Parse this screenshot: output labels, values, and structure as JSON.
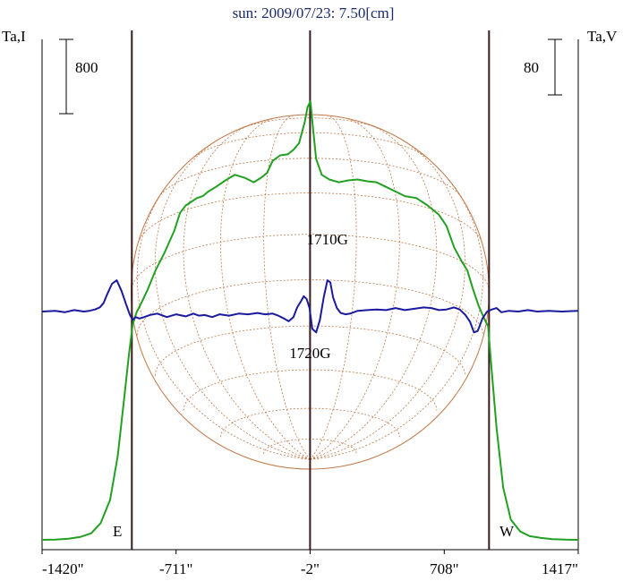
{
  "chart_data": {
    "type": "line",
    "title": "sun: 2009/07/23: 7.50[cm]",
    "left_axis_label": "Ta,I",
    "right_axis_label": "Ta,V",
    "left_scale_label": "800",
    "right_scale_label": "80",
    "left_scale_value": 800,
    "right_scale_value": 80,
    "x_ticks": [
      {
        "value": -1420,
        "label": "-1420\""
      },
      {
        "value": -711,
        "label": "-711\""
      },
      {
        "value": -2,
        "label": "-2\""
      },
      {
        "value": 708,
        "label": "708\""
      },
      {
        "value": 1417,
        "label": "1417\""
      }
    ],
    "xlim": [
      -1420,
      1417
    ],
    "limb_labels": {
      "east": "E",
      "west": "W"
    },
    "limb_positions": [
      -945,
      945
    ],
    "center_position": -2,
    "annotations": [
      {
        "text": "1710G",
        "x": 90,
        "I_value": 1690,
        "side": "above"
      },
      {
        "text": "1720G",
        "x": -2,
        "I_value": 1450,
        "side": "below"
      }
    ],
    "colors": {
      "intensity": "#22a022",
      "polarization": "#1a1aa0",
      "grid": "#c07848",
      "limb_lines": "#3a1a1a",
      "title": "#1a2a6a",
      "text": "#000000"
    },
    "series": [
      {
        "axis": "left",
        "color": "#22a022",
        "x": [
          -1420,
          -1350,
          -1280,
          -1220,
          -1160,
          -1110,
          -1060,
          -1020,
          -985,
          -960,
          -940,
          -920,
          -890,
          -860,
          -820,
          -770,
          -720,
          -690,
          -660,
          -630,
          -600,
          -570,
          -540,
          -500,
          -450,
          -400,
          -350,
          -300,
          -260,
          -230,
          -200,
          -160,
          -120,
          -90,
          -60,
          -30,
          -15,
          0,
          15,
          30,
          60,
          100,
          150,
          200,
          250,
          300,
          350,
          400,
          450,
          500,
          560,
          620,
          680,
          720,
          760,
          800,
          830,
          860,
          890,
          920,
          940,
          960,
          985,
          1020,
          1060,
          1110,
          1160,
          1220,
          1280,
          1350,
          1417
        ],
        "y": [
          0,
          3,
          12,
          30,
          70,
          180,
          430,
          900,
          1530,
          2000,
          2320,
          2450,
          2570,
          2700,
          2900,
          3100,
          3330,
          3520,
          3600,
          3640,
          3680,
          3700,
          3750,
          3800,
          3870,
          3930,
          3900,
          3850,
          3900,
          3950,
          4080,
          4140,
          4150,
          4200,
          4270,
          4500,
          4660,
          4720,
          4400,
          4100,
          3930,
          3880,
          3850,
          3870,
          3880,
          3860,
          3850,
          3800,
          3750,
          3700,
          3680,
          3600,
          3500,
          3380,
          3150,
          3000,
          2900,
          2700,
          2520,
          2380,
          2300,
          1800,
          1200,
          560,
          220,
          90,
          40,
          20,
          8,
          2,
          0
        ]
      },
      {
        "axis": "right",
        "color": "#1a1aa0",
        "x": [
          -1420,
          -1350,
          -1300,
          -1250,
          -1200,
          -1170,
          -1140,
          -1115,
          -1095,
          -1075,
          -1050,
          -1025,
          -1000,
          -975,
          -955,
          -940,
          -925,
          -905,
          -880,
          -850,
          -810,
          -760,
          -710,
          -660,
          -620,
          -590,
          -560,
          -520,
          -480,
          -430,
          -380,
          -330,
          -280,
          -240,
          -200,
          -170,
          -140,
          -115,
          -90,
          -70,
          -50,
          -35,
          -20,
          -5,
          10,
          30,
          50,
          70,
          90,
          105,
          120,
          140,
          160,
          185,
          210,
          250,
          300,
          350,
          400,
          450,
          500,
          550,
          600,
          640,
          680,
          720,
          760,
          790,
          820,
          845,
          865,
          885,
          910,
          935,
          960,
          985,
          1010,
          1050,
          1100,
          1150,
          1200,
          1260,
          1330,
          1417
        ],
        "y": [
          0,
          1,
          -1,
          2,
          0,
          1,
          3,
          6,
          12,
          25,
          40,
          45,
          30,
          10,
          -5,
          -12,
          -8,
          -10,
          -8,
          -5,
          -3,
          -8,
          -4,
          -7,
          -3,
          -6,
          -5,
          -8,
          -4,
          -6,
          -3,
          -4,
          -2,
          -4,
          -3,
          -6,
          -10,
          -14,
          -8,
          6,
          15,
          22,
          18,
          5,
          -25,
          -30,
          -12,
          20,
          45,
          42,
          20,
          5,
          -2,
          -4,
          -3,
          1,
          2,
          3,
          2,
          5,
          2,
          4,
          6,
          5,
          2,
          3,
          6,
          3,
          -5,
          -15,
          -30,
          -28,
          -10,
          0,
          3,
          5,
          -1,
          1,
          0,
          2,
          0,
          1,
          0,
          1
        ]
      }
    ]
  }
}
